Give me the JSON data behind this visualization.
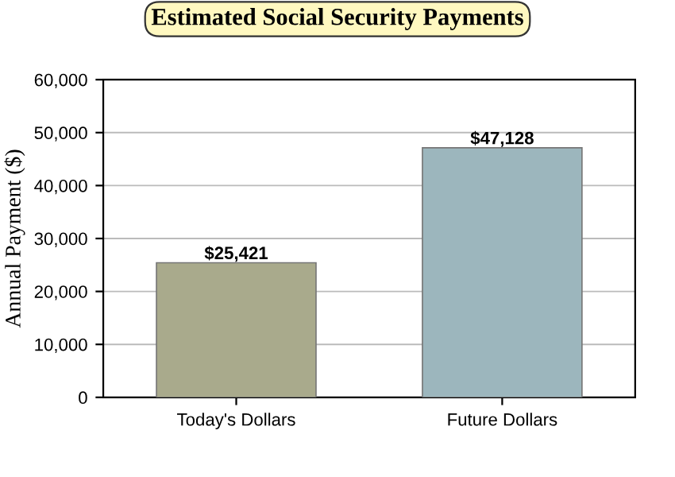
{
  "chart_data": {
    "type": "bar",
    "title": "Estimated Social Security Payments",
    "ylabel": "Annual Payment ($)",
    "categories": [
      "Today's Dollars",
      "Future Dollars"
    ],
    "values": [
      25421,
      47128
    ],
    "colors": [
      "#a9aa8c",
      "#9cb6bd"
    ],
    "value_labels": [
      "$25,421",
      "$47,128"
    ],
    "ylim": [
      0,
      60000
    ],
    "yticks": [
      {
        "value": 0,
        "label": "0"
      },
      {
        "value": 10000,
        "label": "10,000"
      },
      {
        "value": 20000,
        "label": "20,000"
      },
      {
        "value": 30000,
        "label": "30,000"
      },
      {
        "value": 40000,
        "label": "40,000"
      },
      {
        "value": 50000,
        "label": "50,000"
      },
      {
        "value": 60000,
        "label": "60,000"
      }
    ],
    "grid": "y"
  }
}
